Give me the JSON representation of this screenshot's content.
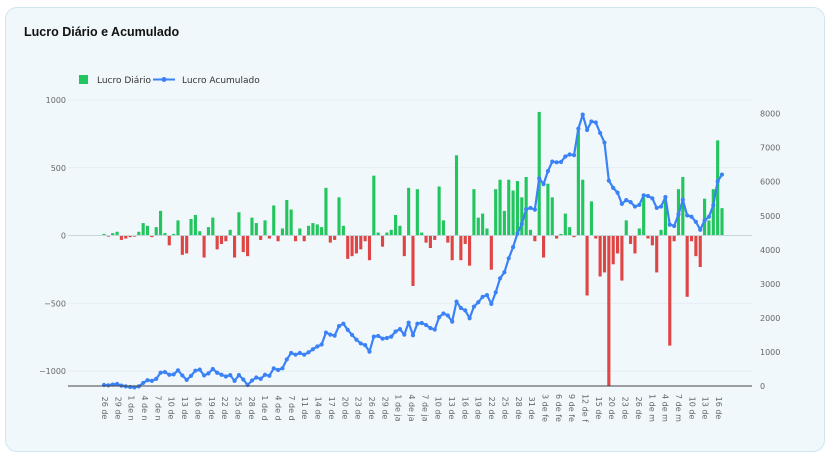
{
  "card": {
    "title": "Lucro Diário e Acumulado"
  },
  "colors": {
    "positive": "#22c55e",
    "negative": "#e04545",
    "line": "#3b82f6"
  },
  "chart_data": {
    "type": "bar+line",
    "legend": [
      "Lucro Diário",
      "Lucro Acumulado"
    ],
    "legend_position": "top-left",
    "grid": true,
    "y_left": {
      "ticks": [
        1000,
        500,
        0,
        -500,
        -1000
      ],
      "labels": [
        "1000",
        "500",
        "0",
        "−500",
        "−1000"
      ],
      "range": [
        -1110,
        1000
      ]
    },
    "y_right": {
      "ticks": [
        0,
        1000,
        2000,
        3000,
        4000,
        5000,
        6000,
        7000,
        8000
      ],
      "labels": [
        "0",
        "1000",
        "2000",
        "3000",
        "4000",
        "5000",
        "6000",
        "7000",
        "8000"
      ],
      "range": [
        0,
        8400
      ]
    },
    "x_tick_labels": [
      "26 de",
      "29 de",
      "1 de n",
      "4 de n",
      "7 de n",
      "10 de",
      "13 de",
      "16 de",
      "19 de",
      "22 de",
      "25 de",
      "28 de",
      "1 de d",
      "4 de d",
      "7 de d",
      "11 de",
      "14 de",
      "17 de",
      "20 de",
      "23 de",
      "26 de",
      "29 de",
      "1 de ja",
      "4 de ja",
      "7 de ja",
      "10 de",
      "13 de",
      "16 de",
      "19 de",
      "22 de",
      "25 de",
      "28 de",
      "31 de",
      "3 de fe",
      "6 de fe",
      "9 de fe",
      "12 de f",
      "15 de",
      "20 de",
      "23 de",
      "26 de",
      "1 de m",
      "4 de m",
      "7 de m",
      "10 de",
      "13 de",
      "16 de"
    ],
    "daily_profit": [
      12,
      -8,
      18,
      28,
      -32,
      -22,
      -12,
      -8,
      28,
      92,
      72,
      -12,
      62,
      182,
      18,
      -72,
      12,
      112,
      -142,
      -132,
      122,
      152,
      32,
      -162,
      62,
      132,
      -102,
      -62,
      -42,
      42,
      -162,
      172,
      -122,
      -152,
      132,
      92,
      -32,
      112,
      -22,
      222,
      -42,
      52,
      262,
      192,
      -42,
      52,
      -42,
      72,
      92,
      82,
      62,
      352,
      -52,
      -32,
      282,
      72,
      -172,
      -152,
      -132,
      -102,
      -42,
      -182,
      442,
      22,
      -82,
      22,
      42,
      152,
      72,
      -152,
      352,
      -372,
      342,
      22,
      -52,
      -92,
      -32,
      362,
      112,
      -52,
      -182,
      592,
      -182,
      -62,
      -222,
      342,
      132,
      162,
      52,
      -252,
      342,
      412,
      182,
      412,
      332,
      402,
      282,
      432,
      42,
      -42,
      912,
      -162,
      382,
      282,
      -22,
      12,
      162,
      62,
      -12,
      782,
      412,
      -442,
      252,
      -22,
      -302,
      -272,
      -1112,
      -212,
      -132,
      -332,
      112,
      -62,
      -132,
      52,
      282,
      -22,
      -72,
      -272,
      42,
      282,
      -812,
      -42,
      342,
      432,
      -452,
      -42,
      -152,
      -232,
      272,
      112,
      342,
      702,
      202
    ],
    "cumulative_profit": [
      30,
      20,
      40,
      60,
      10,
      -10,
      -30,
      -40,
      -10,
      90,
      170,
      150,
      210,
      390,
      410,
      330,
      340,
      460,
      310,
      180,
      300,
      450,
      480,
      310,
      370,
      500,
      390,
      330,
      280,
      320,
      150,
      320,
      190,
      30,
      160,
      250,
      210,
      330,
      300,
      520,
      470,
      520,
      780,
      970,
      920,
      970,
      920,
      990,
      1080,
      1160,
      1220,
      1570,
      1510,
      1480,
      1760,
      1830,
      1650,
      1500,
      1360,
      1250,
      1200,
      1010,
      1450,
      1470,
      1390,
      1410,
      1450,
      1600,
      1670,
      1510,
      1860,
      1490,
      1830,
      1850,
      1790,
      1700,
      1660,
      2020,
      2130,
      2070,
      1890,
      2480,
      2290,
      2220,
      1990,
      2330,
      2460,
      2620,
      2670,
      2410,
      2750,
      3160,
      3340,
      3750,
      4080,
      4480,
      4760,
      5190,
      5230,
      5180,
      6100,
      5930,
      6310,
      6590,
      6570,
      6580,
      6740,
      6800,
      6780,
      7560,
      7970,
      7520,
      7770,
      7740,
      7430,
      7150,
      6030,
      5820,
      5680,
      5350,
      5460,
      5400,
      5270,
      5320,
      5600,
      5580,
      5510,
      5230,
      5270,
      5550,
      4740,
      4700,
      5040,
      5470,
      5010,
      4970,
      4820,
      4590,
      4860,
      4970,
      5310,
      6010,
      6210
    ]
  }
}
